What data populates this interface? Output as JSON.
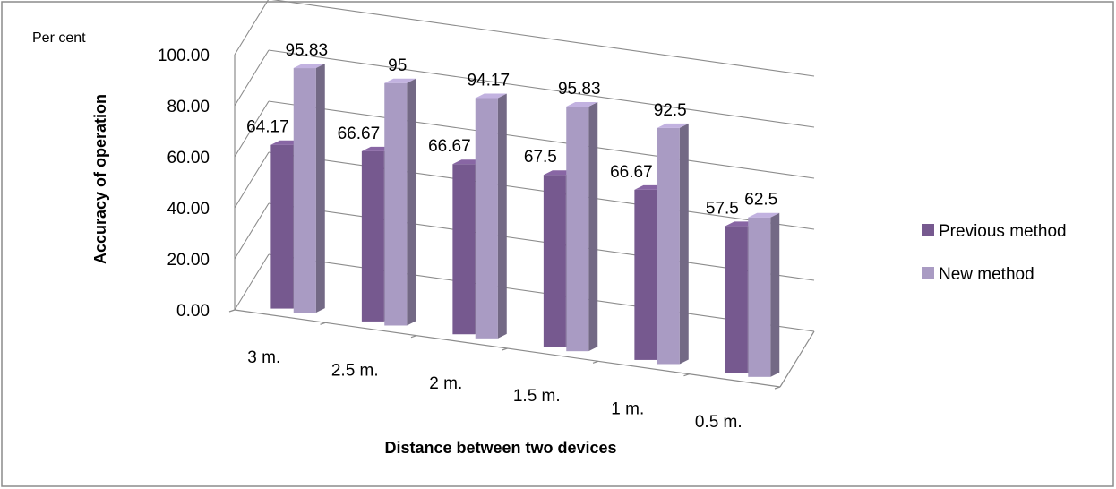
{
  "chart_data": {
    "type": "bar",
    "unit_label": "Per cent",
    "ylabel": "Accuracy of operation",
    "xlabel": "Distance between two devices",
    "categories": [
      "3 m.",
      "2.5 m.",
      "2 m.",
      "1.5 m.",
      "1 m.",
      "0.5 m."
    ],
    "y_ticks": [
      "0.00",
      "20.00",
      "40.00",
      "60.00",
      "80.00",
      "100.00"
    ],
    "ylim": [
      0,
      100
    ],
    "grid": true,
    "legend_position": "right",
    "series": [
      {
        "name": "Previous method",
        "values": [
          64.17,
          66.67,
          66.67,
          67.5,
          66.67,
          57.5
        ],
        "labels": [
          "64.17",
          "66.67",
          "66.67",
          "67.5",
          "66.67",
          "57.5"
        ],
        "color": "#76598f"
      },
      {
        "name": "New method",
        "values": [
          95.83,
          95,
          94.17,
          95.83,
          92.5,
          62.5
        ],
        "labels": [
          "95.83",
          "95",
          "94.17",
          "95.83",
          "92.5",
          "62.5"
        ],
        "color": "#a99bc3"
      }
    ]
  }
}
